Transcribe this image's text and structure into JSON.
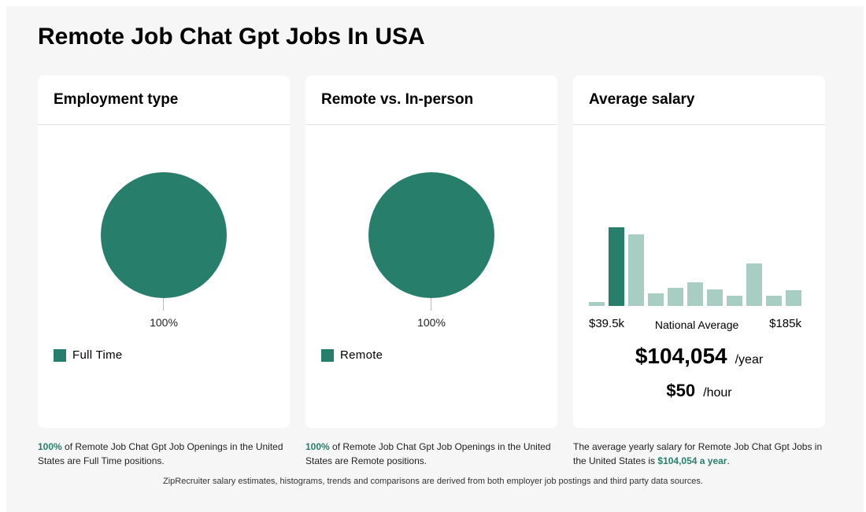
{
  "title": "Remote Job Chat Gpt Jobs In USA",
  "cards": [
    {
      "title": "Employment type",
      "pct": "100%",
      "legend": "Full Time",
      "foot_pct": "100%",
      "foot_text": " of Remote Job Chat Gpt Job Openings in the United States are Full Time positions."
    },
    {
      "title": "Remote vs. In-person",
      "pct": "100%",
      "legend": "Remote",
      "foot_pct": "100%",
      "foot_text": " of Remote Job Chat Gpt Job Openings in the United States are Remote positions."
    }
  ],
  "salary": {
    "title": "Average salary",
    "min": "$39.5k",
    "mid": "National Average",
    "max": "$185k",
    "yearly": "$104,054",
    "yearly_unit": "/year",
    "hourly": "$50",
    "hourly_unit": "/hour",
    "foot_text": "The average yearly salary for Remote Job Chat Gpt Jobs in the United States is ",
    "foot_hl": "$104,054 a year",
    "foot_end": "."
  },
  "chart_data": {
    "type": "bar",
    "relative_heights": [
      5,
      100,
      91,
      16,
      23,
      30,
      21,
      13,
      54,
      13,
      20
    ],
    "highlight_index": 1,
    "colors": {
      "highlight": "#277f6b",
      "normal": "#a8cdc2"
    }
  },
  "note": "ZipRecruiter salary estimates, histograms, trends and comparisons are derived from both employer job postings and third party data sources."
}
